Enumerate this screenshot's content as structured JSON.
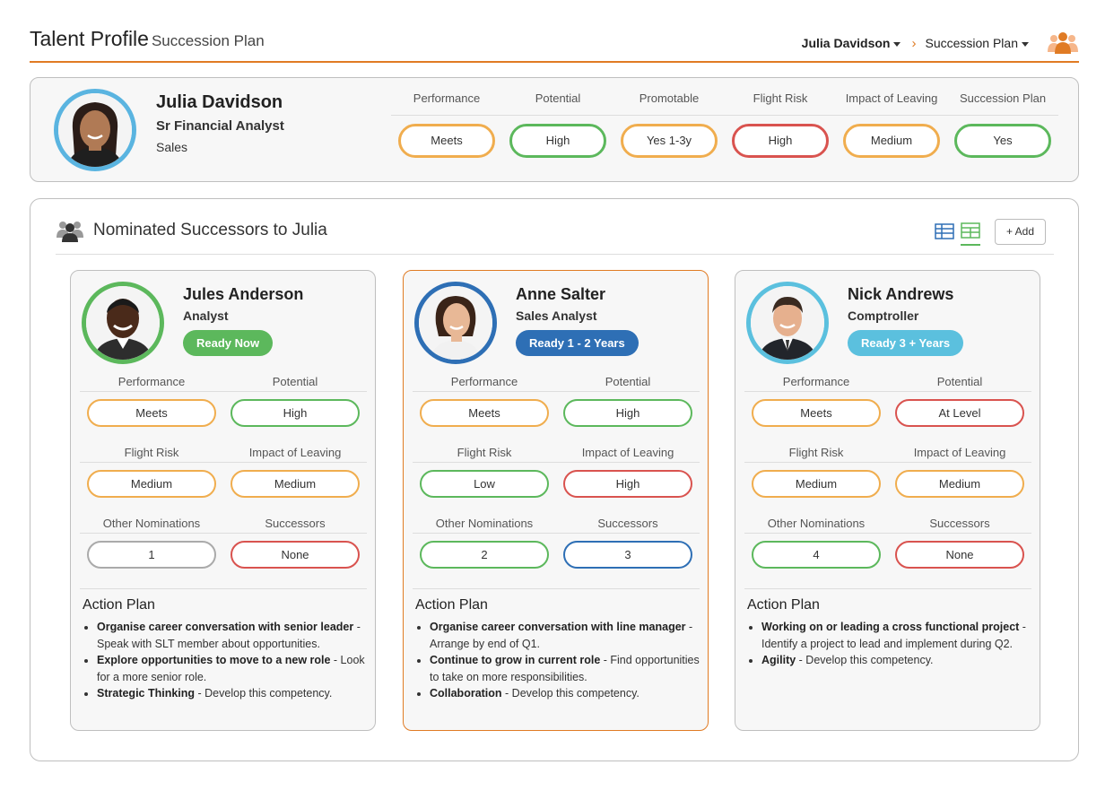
{
  "header": {
    "title": "Talent Profile",
    "subtitle": "Succession Plan",
    "person_menu": "Julia Davidson",
    "breadcrumb_current": "Succession Plan",
    "logo_icon": "team-logo-icon"
  },
  "profile": {
    "name": "Julia Davidson",
    "role": "Sr Financial Analyst",
    "department": "Sales",
    "metrics": [
      {
        "label": "Performance",
        "value": "Meets",
        "color": "#f0ad4e"
      },
      {
        "label": "Potential",
        "value": "High",
        "color": "#5cb85c"
      },
      {
        "label": "Promotable",
        "value": "Yes 1-3y",
        "color": "#f0ad4e"
      },
      {
        "label": "Flight Risk",
        "value": "High",
        "color": "#d9534f"
      },
      {
        "label": "Impact of Leaving",
        "value": "Medium",
        "color": "#f0ad4e"
      },
      {
        "label": "Succession Plan",
        "value": "Yes",
        "color": "#5cb85c"
      }
    ]
  },
  "successors": {
    "title": "Nominated Successors to Julia",
    "add_label": "+ Add",
    "cards": [
      {
        "name": "Jules Anderson",
        "role": "Analyst",
        "readiness": "Ready Now",
        "readiness_color": "#5cb85c",
        "avatar_ring": "#5cb85c",
        "fields": [
          {
            "label": "Performance",
            "value": "Meets",
            "color": "#f0ad4e"
          },
          {
            "label": "Potential",
            "value": "High",
            "color": "#5cb85c"
          },
          {
            "label": "Flight Risk",
            "value": "Medium",
            "color": "#f0ad4e"
          },
          {
            "label": "Impact of Leaving",
            "value": "Medium",
            "color": "#f0ad4e"
          },
          {
            "label": "Other Nominations",
            "value": "1",
            "color": "#aaaaaa"
          },
          {
            "label": "Successors",
            "value": "None",
            "color": "#d9534f"
          }
        ],
        "action_title": "Action Plan",
        "actions": [
          {
            "bold": "Organise career conversation with senior leader",
            "text": " - Speak with SLT member about opportunities."
          },
          {
            "bold": "Explore opportunities to move to a new role",
            "text": " - Look for a more senior role."
          },
          {
            "bold": "Strategic Thinking",
            "text": " - Develop this competency."
          }
        ]
      },
      {
        "name": "Anne Salter",
        "role": "Sales Analyst",
        "readiness": "Ready 1 - 2 Years",
        "readiness_color": "#2e6fb5",
        "avatar_ring": "#2e6fb5",
        "fields": [
          {
            "label": "Performance",
            "value": "Meets",
            "color": "#f0ad4e"
          },
          {
            "label": "Potential",
            "value": "High",
            "color": "#5cb85c"
          },
          {
            "label": "Flight Risk",
            "value": "Low",
            "color": "#5cb85c"
          },
          {
            "label": "Impact of Leaving",
            "value": "High",
            "color": "#d9534f"
          },
          {
            "label": "Other Nominations",
            "value": "2",
            "color": "#5cb85c"
          },
          {
            "label": "Successors",
            "value": "3",
            "color": "#2e6fb5"
          }
        ],
        "action_title": "Action Plan",
        "actions": [
          {
            "bold": "Organise career conversation with line manager",
            "text": " - Arrange by end of Q1."
          },
          {
            "bold": "Continue to grow in current role",
            "text": " - Find opportunities to take on more responsibilities."
          },
          {
            "bold": "Collaboration",
            "text": " - Develop this competency."
          }
        ]
      },
      {
        "name": "Nick Andrews",
        "role": "Comptroller",
        "readiness": "Ready 3 + Years",
        "readiness_color": "#5bc0de",
        "avatar_ring": "#5bc0de",
        "fields": [
          {
            "label": "Performance",
            "value": "Meets",
            "color": "#f0ad4e"
          },
          {
            "label": "Potential",
            "value": "At Level",
            "color": "#d9534f"
          },
          {
            "label": "Flight Risk",
            "value": "Medium",
            "color": "#f0ad4e"
          },
          {
            "label": "Impact of Leaving",
            "value": "Medium",
            "color": "#f0ad4e"
          },
          {
            "label": "Other Nominations",
            "value": "4",
            "color": "#5cb85c"
          },
          {
            "label": "Successors",
            "value": "None",
            "color": "#d9534f"
          }
        ],
        "action_title": "Action Plan",
        "actions": [
          {
            "bold": "Working on or leading a cross functional project",
            "text": " - Identify a project to lead and implement during Q2."
          },
          {
            "bold": "Agility",
            "text": " - Develop this competency."
          }
        ]
      }
    ]
  }
}
